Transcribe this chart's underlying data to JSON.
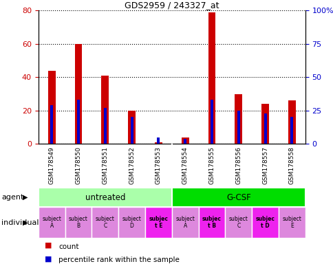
{
  "title": "GDS2959 / 243327_at",
  "samples": [
    "GSM178549",
    "GSM178550",
    "GSM178551",
    "GSM178552",
    "GSM178553",
    "GSM178554",
    "GSM178555",
    "GSM178556",
    "GSM178557",
    "GSM178558"
  ],
  "red_values": [
    44,
    60,
    41,
    20,
    1,
    4,
    79,
    30,
    24,
    26
  ],
  "blue_values": [
    29,
    33,
    27,
    20,
    5,
    4,
    33,
    25,
    23,
    20
  ],
  "ylim_left": [
    0,
    80
  ],
  "ylim_right": [
    0,
    100
  ],
  "yticks_left": [
    0,
    20,
    40,
    60,
    80
  ],
  "yticks_right": [
    0,
    25,
    50,
    75,
    100
  ],
  "ytick_labels_right": [
    "0",
    "25",
    "50",
    "75",
    "100%"
  ],
  "groups": [
    {
      "label": "untreated",
      "start": 0,
      "end": 5,
      "color": "#aaffaa"
    },
    {
      "label": "G-CSF",
      "start": 5,
      "end": 10,
      "color": "#00dd00"
    }
  ],
  "individuals": [
    {
      "label": "subject\nA",
      "col": 0,
      "bg": "#dd88dd",
      "bold": false
    },
    {
      "label": "subject\nB",
      "col": 1,
      "bg": "#dd88dd",
      "bold": false
    },
    {
      "label": "subject\nC",
      "col": 2,
      "bg": "#dd88dd",
      "bold": false
    },
    {
      "label": "subject\nD",
      "col": 3,
      "bg": "#dd88dd",
      "bold": false
    },
    {
      "label": "subjec\nt E",
      "col": 4,
      "bg": "#ee22ee",
      "bold": true
    },
    {
      "label": "subject\nA",
      "col": 5,
      "bg": "#dd88dd",
      "bold": false
    },
    {
      "label": "subjec\nt B",
      "col": 6,
      "bg": "#ee22ee",
      "bold": true
    },
    {
      "label": "subject\nC",
      "col": 7,
      "bg": "#dd88dd",
      "bold": false
    },
    {
      "label": "subjec\nt D",
      "col": 8,
      "bg": "#ee22ee",
      "bold": true
    },
    {
      "label": "subject\nE",
      "col": 9,
      "bg": "#dd88dd",
      "bold": false
    }
  ],
  "bar_color_red": "#cc0000",
  "bar_color_blue": "#0000cc",
  "tick_label_area_color": "#cccccc",
  "legend_red_label": "count",
  "legend_blue_label": "percentile rank within the sample",
  "agent_label": "agent",
  "individual_label": "individual"
}
